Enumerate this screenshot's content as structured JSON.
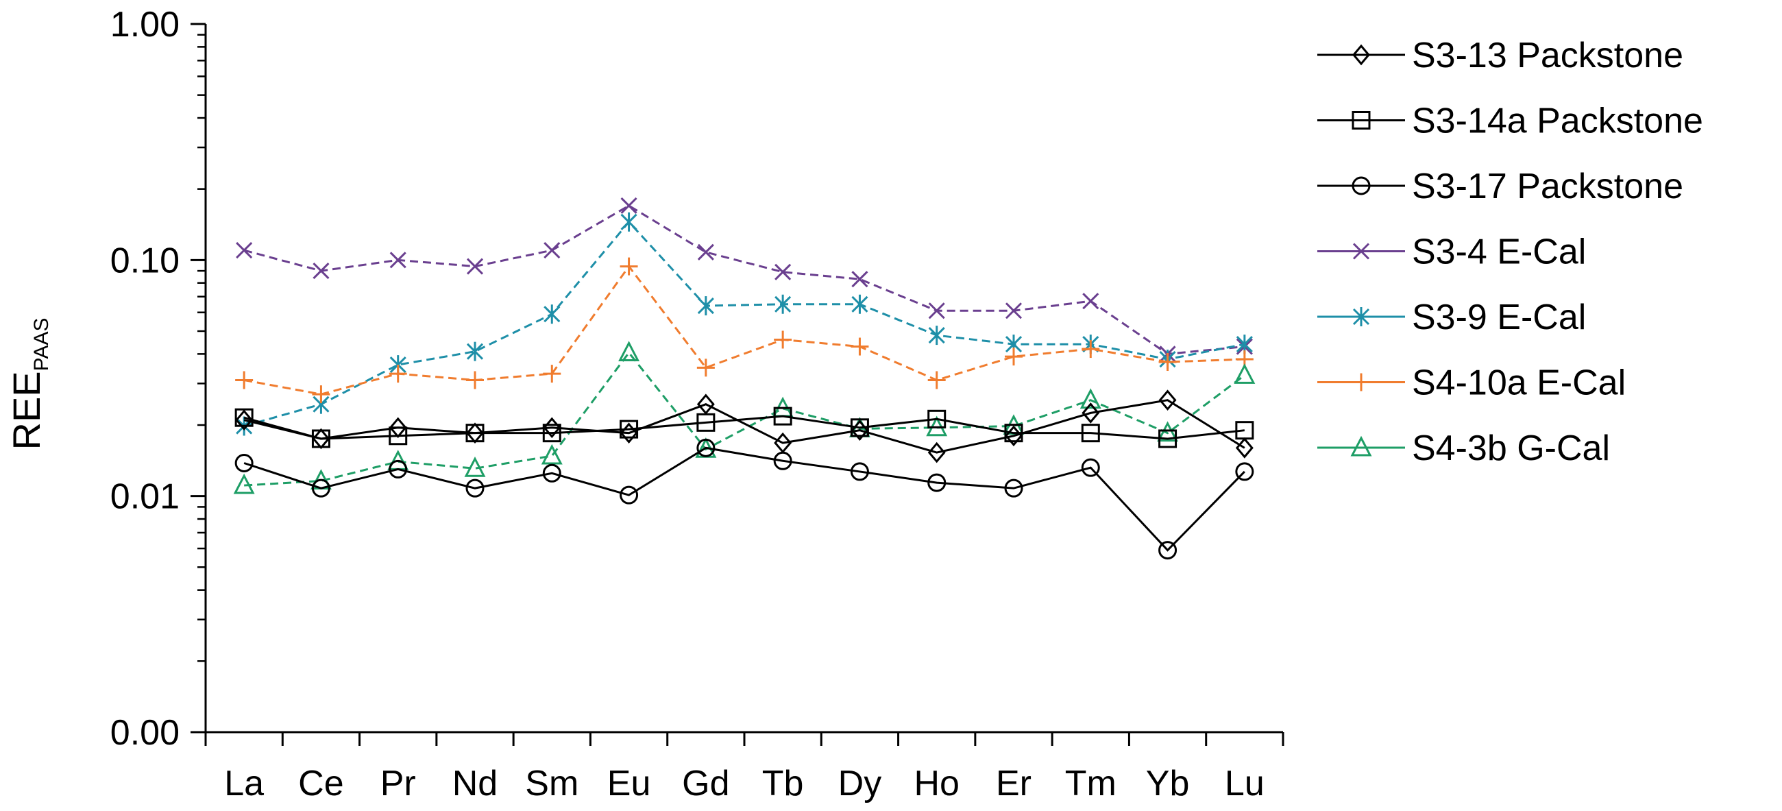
{
  "chart_data": {
    "type": "line",
    "ylabel": "REE",
    "ylabel_subscript": "PAAS",
    "yscale": "log",
    "ylim": [
      0.001,
      1.0
    ],
    "yticks": [
      {
        "value": 1.0,
        "label": "1.00"
      },
      {
        "value": 0.1,
        "label": "0.10"
      },
      {
        "value": 0.01,
        "label": "0.01"
      },
      {
        "value": 0.001,
        "label": "0.00"
      }
    ],
    "categories": [
      "La",
      "Ce",
      "Pr",
      "Nd",
      "Sm",
      "Eu",
      "Gd",
      "Tb",
      "Dy",
      "Ho",
      "Er",
      "Tm",
      "Yb",
      "Lu"
    ],
    "legend_position": "right",
    "series": [
      {
        "name": "S3-13 Packstone",
        "marker": "diamond",
        "color": "#000000",
        "dashed": false,
        "values": [
          0.021,
          0.0175,
          0.0195,
          0.0185,
          0.0195,
          0.0185,
          0.0245,
          0.0168,
          0.019,
          0.0153,
          0.018,
          0.0225,
          0.0255,
          0.016
        ]
      },
      {
        "name": "S3-14a Packstone",
        "marker": "square",
        "color": "#000000",
        "dashed": false,
        "values": [
          0.0215,
          0.0175,
          0.018,
          0.0185,
          0.0185,
          0.0192,
          0.0205,
          0.0218,
          0.0195,
          0.0212,
          0.0185,
          0.0185,
          0.0175,
          0.019
        ]
      },
      {
        "name": "S3-17 Packstone",
        "marker": "circle",
        "color": "#000000",
        "dashed": false,
        "values": [
          0.0138,
          0.0108,
          0.013,
          0.0108,
          0.0125,
          0.0101,
          0.016,
          0.0141,
          0.0127,
          0.0114,
          0.0108,
          0.0132,
          0.0059,
          0.0127
        ]
      },
      {
        "name": "S3-4 E-Cal",
        "marker": "x",
        "color": "#6A3F8F",
        "dashed": true,
        "values": [
          0.11,
          0.09,
          0.1,
          0.094,
          0.11,
          0.17,
          0.108,
          0.089,
          0.083,
          0.061,
          0.061,
          0.067,
          0.04,
          0.043
        ]
      },
      {
        "name": "S3-9 E-Cal",
        "marker": "asterisk",
        "color": "#1E8FA8",
        "dashed": true,
        "values": [
          0.0198,
          0.0245,
          0.036,
          0.041,
          0.059,
          0.145,
          0.064,
          0.065,
          0.065,
          0.048,
          0.044,
          0.044,
          0.038,
          0.044
        ]
      },
      {
        "name": "S4-10a E-Cal",
        "marker": "plus",
        "color": "#F07C2E",
        "dashed": true,
        "values": [
          0.031,
          0.027,
          0.033,
          0.031,
          0.033,
          0.094,
          0.035,
          0.046,
          0.043,
          0.031,
          0.039,
          0.042,
          0.037,
          0.038
        ]
      },
      {
        "name": "S4-3b G-Cal",
        "marker": "triangle",
        "color": "#1E9E66",
        "dashed": true,
        "values": [
          0.0111,
          0.0116,
          0.014,
          0.0131,
          0.0148,
          0.0405,
          0.0158,
          0.0235,
          0.0193,
          0.0195,
          0.0198,
          0.0255,
          0.0185,
          0.0325
        ]
      }
    ]
  }
}
